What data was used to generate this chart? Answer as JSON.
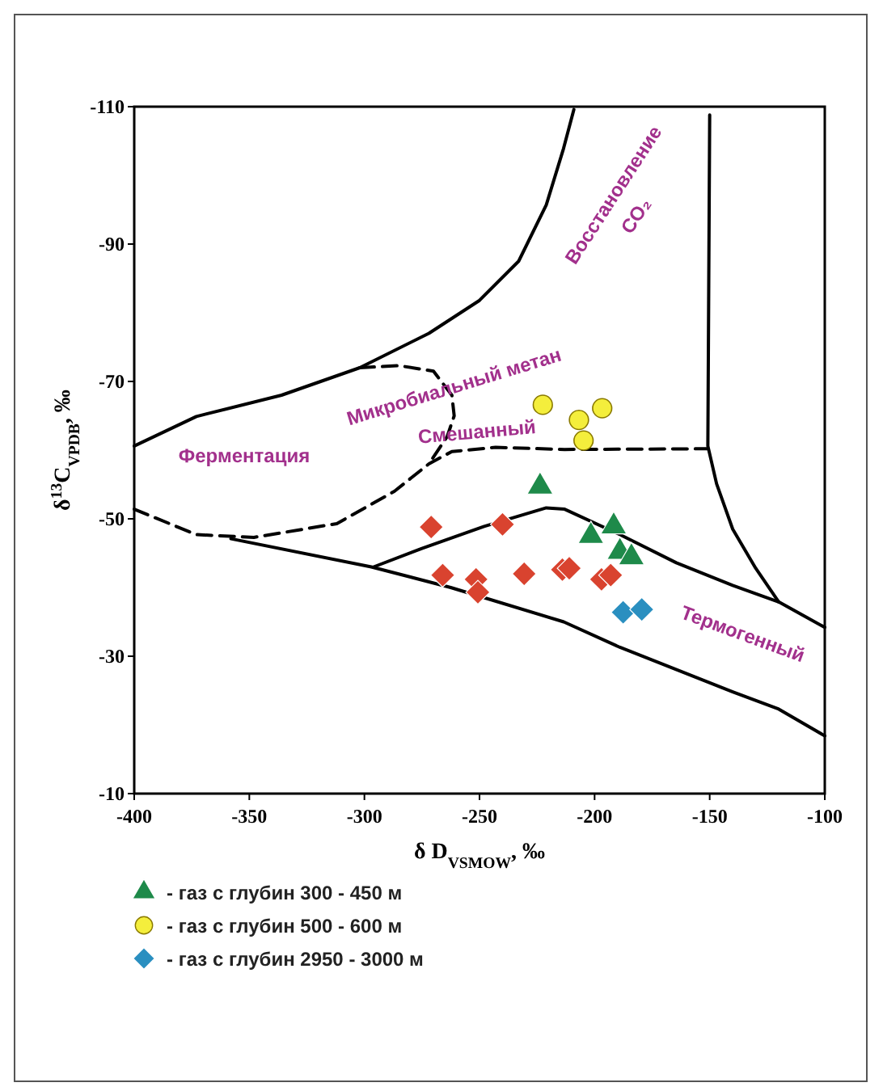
{
  "chart_data": {
    "type": "scatter",
    "xlabel": "δ D$_{VSMOW}$, ‰",
    "ylabel": "δ$^{13}$C$_{VPDB}$, ‰",
    "xlim": [
      -400,
      -100
    ],
    "xticks": [
      -400,
      -350,
      -300,
      -250,
      -200,
      -150,
      -100
    ],
    "ylim": [
      -10,
      -110
    ],
    "yticks": [
      -10,
      -30,
      -50,
      -70,
      -90,
      -110
    ],
    "grid": false,
    "legend": "bottom",
    "annotations": [
      "Ферментация",
      "Микробиальный метан",
      "Смешанный",
      "Восстановление",
      "CO₂",
      "Термогенный"
    ],
    "series": [
      {
        "type": "line",
        "color": "#000000",
        "line_style": "solid",
        "marker": "none",
        "x": [
          -400,
          -373,
          -336,
          -302,
          -272,
          -250,
          -233,
          -221,
          -213.5,
          -209
        ],
        "values": [
          -60.6,
          -64.9,
          -68,
          -72,
          -77,
          -81.8,
          -87.5,
          -95.7,
          -103.9,
          -109.6
        ]
      },
      {
        "type": "line",
        "color": "#000000",
        "line_style": "solid",
        "marker": "none",
        "x": [
          -150,
          -150.8,
          -147,
          -140,
          -130,
          -120
        ],
        "values": [
          -108.8,
          -60.6,
          -55.1,
          -48.5,
          -42.8,
          -37.9
        ]
      },
      {
        "type": "line",
        "color": "#000000",
        "line_style": "dashed",
        "marker": "none",
        "x": [
          -400,
          -373,
          -348,
          -312,
          -287,
          -272,
          -262,
          -243,
          -213,
          -151
        ],
        "values": [
          -51.4,
          -47.7,
          -47.3,
          -49.3,
          -54,
          -58,
          -59.8,
          -60.4,
          -60.1,
          -60.2
        ]
      },
      {
        "type": "line",
        "color": "#000000",
        "line_style": "dashed",
        "marker": "none",
        "x": [
          -302,
          -285,
          -270,
          -262,
          -261,
          -264,
          -272
        ],
        "values": [
          -72,
          -72.3,
          -71.5,
          -68,
          -65,
          -62,
          -58
        ]
      },
      {
        "type": "line",
        "color": "#000000",
        "line_style": "solid",
        "marker": "none",
        "x": [
          -358,
          -297,
          -262.5,
          -213.4,
          -189,
          -140,
          -120,
          -100
        ],
        "values": [
          -47.1,
          -43,
          -40,
          -35,
          -31.3,
          -24.8,
          -22.3,
          -18.4
        ]
      },
      {
        "type": "line",
        "color": "#000000",
        "line_style": "solid",
        "marker": "none",
        "x": [
          -296,
          -275,
          -248,
          -221,
          -213,
          -189,
          -164.5,
          -140,
          -120,
          -100
        ],
        "values": [
          -43,
          -45.7,
          -48.9,
          -51.6,
          -51.4,
          -47.7,
          -43.6,
          -40.3,
          -37.9,
          -34.2
        ]
      },
      {
        "color": "#d9432f",
        "marker": "diamond",
        "x": [
          -271,
          -240,
          -266,
          -251.5,
          -250.7,
          -230.6,
          -214,
          -211,
          -197,
          -193
        ],
        "values": [
          -48.8,
          -49.2,
          -41.8,
          -41.2,
          -39.3,
          -42,
          -42.6,
          -42.8,
          -41.2,
          -41.8
        ]
      },
      {
        "name": "- газ с глубин 300 - 450 м",
        "color": "#1e8a4a",
        "marker": "triangle",
        "x": [
          -223.7,
          -201.6,
          -191.7,
          -189,
          -184
        ],
        "values": [
          -54.7,
          -47.5,
          -48.9,
          -45.2,
          -44.4
        ]
      },
      {
        "name": "- газ с глубин 500 - 600 м",
        "color": "#f4ee3c",
        "marker": "circle",
        "x": [
          -222.5,
          -206.8,
          -196.7,
          -204.8
        ],
        "values": [
          -66.6,
          -64.4,
          -66.1,
          -61.4
        ]
      },
      {
        "name": "- газ с глубин 2950 - 3000 м",
        "color": "#2a8fc0",
        "marker": "diamond",
        "x": [
          -187.6,
          -179.5
        ],
        "values": [
          -36.4,
          -36.8
        ]
      }
    ]
  }
}
